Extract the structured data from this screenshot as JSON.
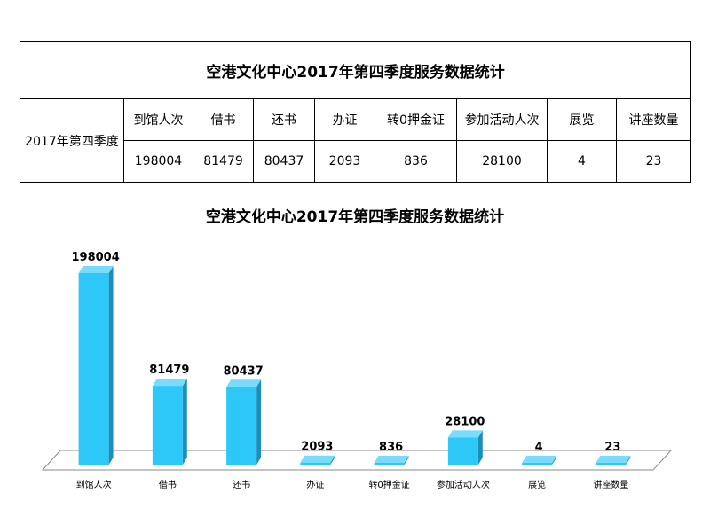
{
  "table": {
    "title": "空港文化中心2017年第四季度服务数据统计",
    "row_label": "2017年第四季度",
    "headers": [
      "到馆人次",
      "借书",
      "还书",
      "办证",
      "转0押金证",
      "参加活动人次",
      "展览",
      "讲座数量"
    ],
    "values": [
      "198004",
      "81479",
      "80437",
      "2093",
      "836",
      "28100",
      "4",
      "23"
    ]
  },
  "chart_data": {
    "type": "bar",
    "title": "空港文化中心2017年第四季度服务数据统计",
    "categories": [
      "到馆人次",
      "借书",
      "还书",
      "办证",
      "转0押金证",
      "参加活动人次",
      "展览",
      "讲座数量"
    ],
    "values": [
      198004,
      81479,
      80437,
      2093,
      836,
      28100,
      4,
      23
    ],
    "xlabel": "",
    "ylabel": "",
    "ylim": [
      0,
      220000
    ],
    "grid": false,
    "legend": "none",
    "style": "3d-column",
    "colors": {
      "bar_front": "#2ec8f8",
      "bar_side": "#1a8fb9",
      "bar_top": "#7adcfc",
      "floor": "#ffffff",
      "floor_stroke": "#888888"
    }
  }
}
